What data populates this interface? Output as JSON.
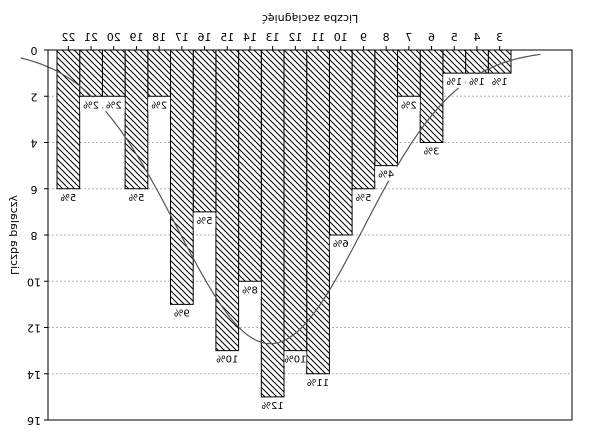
{
  "chart_data": {
    "type": "bar",
    "rendering": "mirrored (image flipped horizontally); rotated ylabel reads mirrored",
    "title": "Liczba zaciągnięć",
    "ylabel": "Liczba palaczy",
    "categories": [
      "3",
      "4",
      "5",
      "6",
      "7",
      "8",
      "9",
      "10",
      "11",
      "12",
      "13",
      "14",
      "15",
      "16",
      "17",
      "18",
      "19",
      "20",
      "21",
      "22"
    ],
    "values": [
      1,
      1,
      1,
      4,
      2,
      5,
      6,
      8,
      14,
      13,
      15,
      10,
      13,
      7,
      11,
      2,
      6,
      2,
      2,
      6
    ],
    "bar_labels": [
      "1%",
      "1%",
      "1%",
      "3%",
      "2%",
      "4%",
      "5%",
      "6%",
      "11%",
      "10%",
      "12%",
      "8%",
      "10%",
      "5%",
      "9%",
      "2%",
      "5%",
      "2%",
      "2%",
      "5%"
    ],
    "ylim": [
      0,
      16
    ],
    "y_ticks": [
      "0",
      "2",
      "4",
      "6",
      "8",
      "10",
      "12",
      "14",
      "16"
    ],
    "y_axis_inverted": true,
    "x_axis_position": "top",
    "grid": true,
    "overlay_curve": "normal distribution fit",
    "colors": {
      "bar_hatch": "#000000",
      "curve": "#555555",
      "grid": "#b0b0b0",
      "background": "#ffffff"
    }
  }
}
